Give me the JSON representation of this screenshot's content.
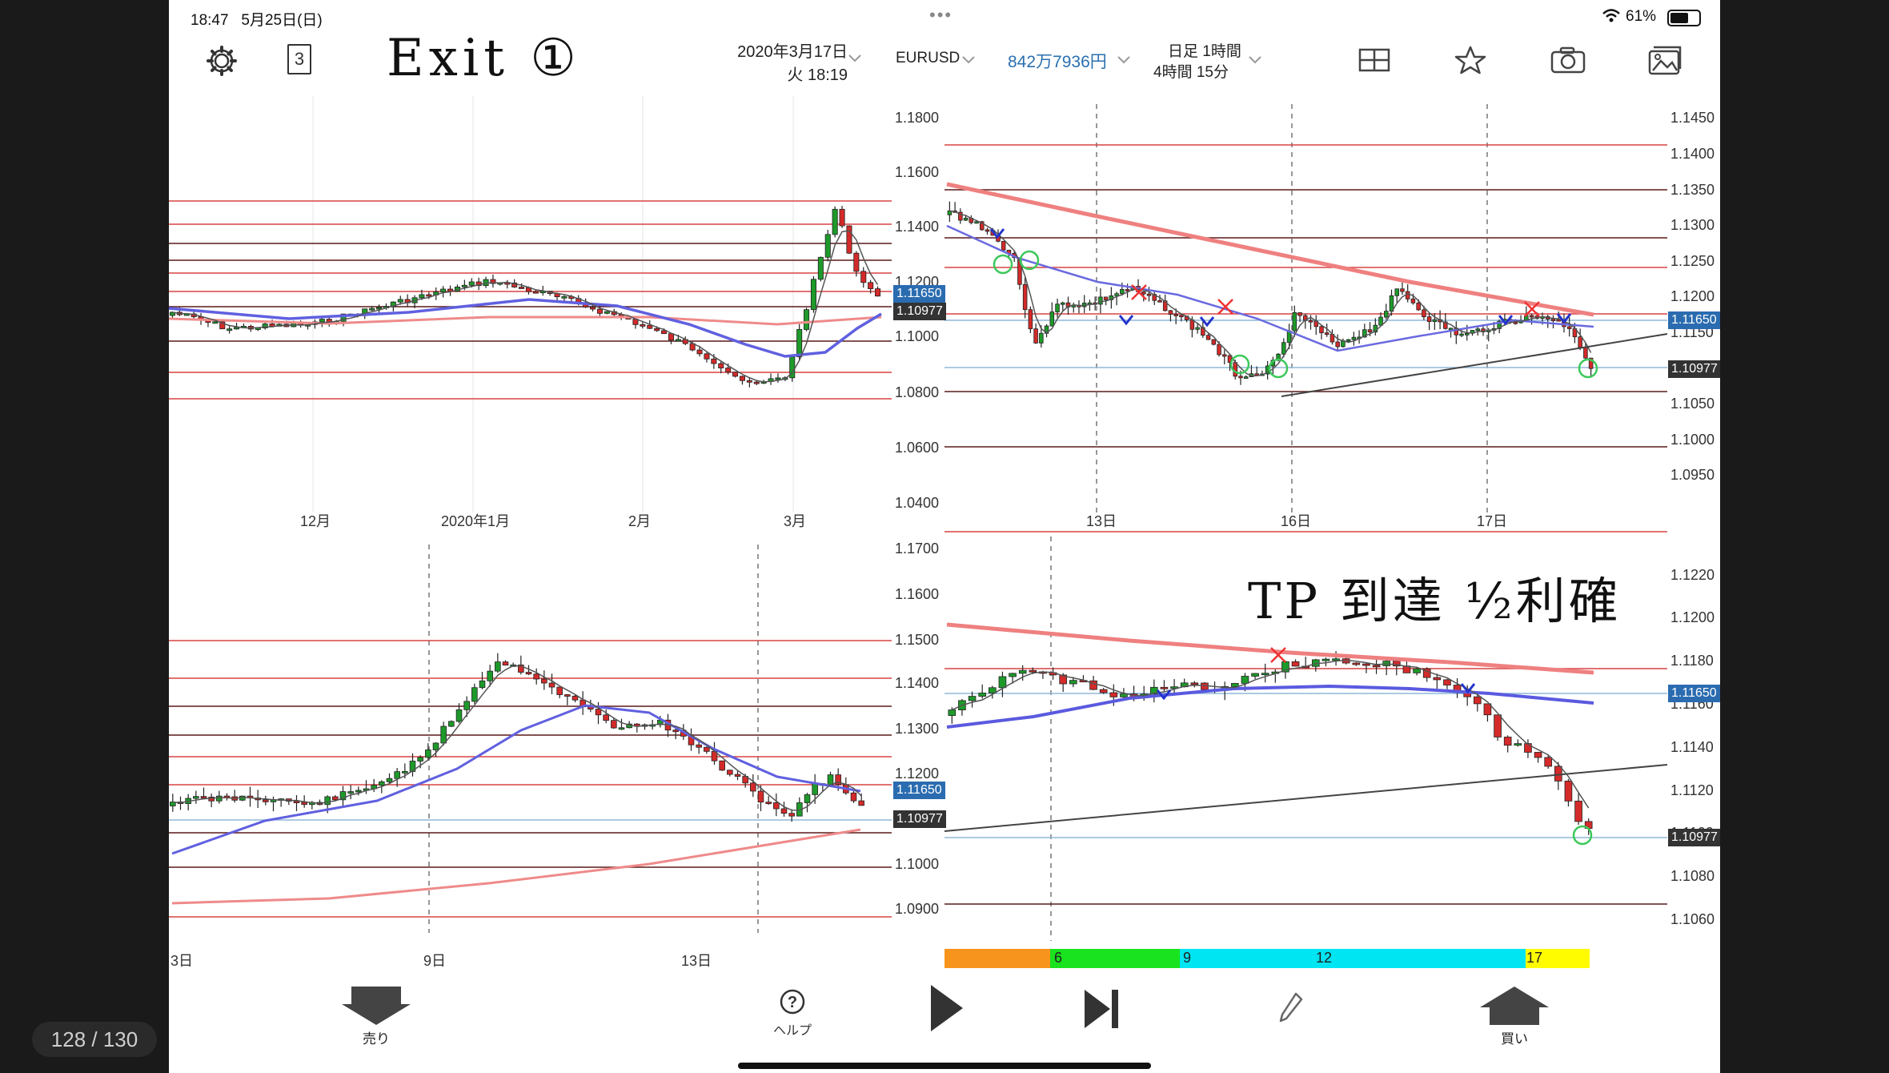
{
  "status_bar": {
    "time": "18:47",
    "date": "5月25日(日)",
    "dots": "•••",
    "battery": "61%"
  },
  "header": {
    "page_icon_number": "3",
    "note": "Exit ①",
    "date_line1": "2020年3月17日",
    "date_line2": "火 18:19",
    "symbol": "EURUSD",
    "balance": "842万7936円",
    "timeframes_row1": "日足  1時間",
    "timeframes_row2": "4時間  15分"
  },
  "panels": {
    "daily": {
      "x_labels": [
        "12月",
        "2020年1月",
        "2月",
        "3月"
      ],
      "y_labels": [
        "1.1800",
        "1.1600",
        "1.1400",
        "1.1200",
        "1.1000",
        "1.0800",
        "1.0600",
        "1.0400"
      ],
      "badge_blue": "1.11650",
      "badge_dark": "1.10977"
    },
    "h1": {
      "x_labels": [
        "13日",
        "16日",
        "17日"
      ],
      "y_labels": [
        "1.1450",
        "1.1400",
        "1.1350",
        "1.1300",
        "1.1250",
        "1.1200",
        "1.1150",
        "1.1100",
        "1.1050",
        "1.1000",
        "1.0950"
      ],
      "badge_blue": "1.11650",
      "badge_dark": "1.10977"
    },
    "h4": {
      "x_labels": [
        "3日",
        "9日",
        "13日"
      ],
      "y_labels": [
        "1.1700",
        "1.1600",
        "1.1500",
        "1.1400",
        "1.1300",
        "1.1200",
        "1.1100",
        "1.1000",
        "1.0900"
      ],
      "badge_blue": "1.11650",
      "badge_dark": "1.10977"
    },
    "m15": {
      "note": "TP 到達 ½利確",
      "y_labels": [
        "1.1220",
        "1.1200",
        "1.1180",
        "1.1160",
        "1.1140",
        "1.1120",
        "1.1100",
        "1.1080",
        "1.1060"
      ],
      "badge_blue": "1.11650",
      "badge_dark": "1.10977",
      "session_labels": [
        "6",
        "9",
        "12",
        "17"
      ]
    }
  },
  "footer": {
    "sell": "売り",
    "help": "ヘルプ",
    "buy": "買い"
  },
  "pager": "128 / 130",
  "colors": {
    "bg": "#ffffff",
    "outer": "#1a1a1a",
    "up": "#1e9a2a",
    "down": "#d42a2a",
    "ma_blue": "#5a5ae0",
    "ma_red": "#ef8080",
    "level_red": "#d94444",
    "level_dark": "#5a1a1a"
  }
}
